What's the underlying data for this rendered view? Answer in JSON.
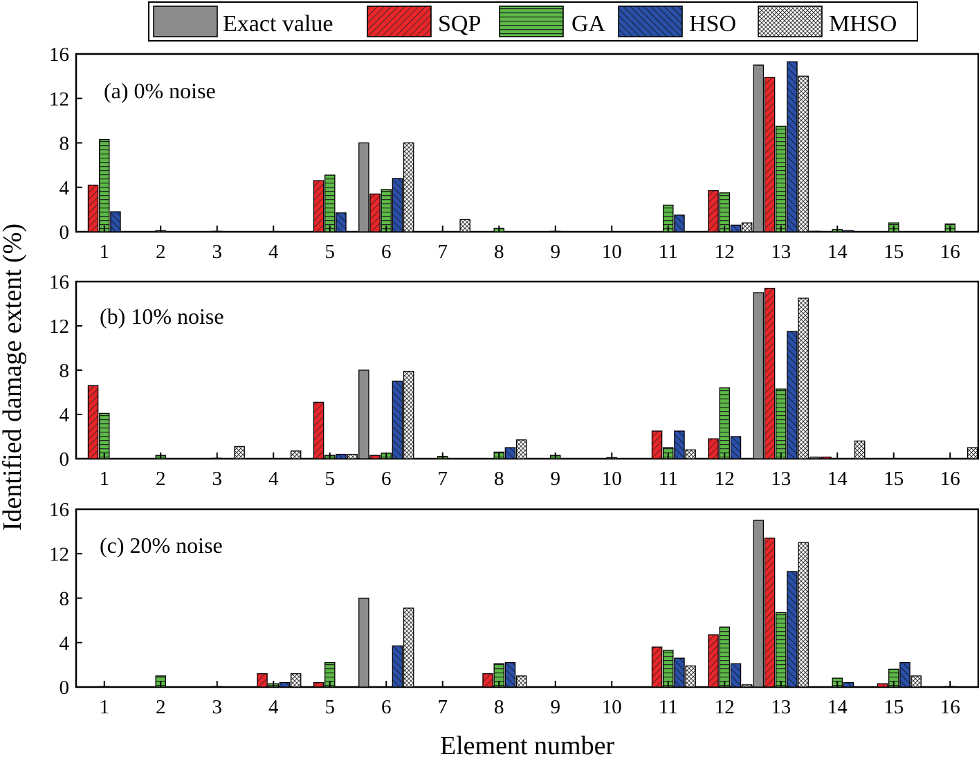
{
  "chart_data": {
    "type": "bar",
    "xlabel": "Element number",
    "ylabel": "Identified damage extent (%)",
    "categories": [
      "1",
      "2",
      "3",
      "4",
      "5",
      "6",
      "7",
      "8",
      "9",
      "10",
      "11",
      "12",
      "13",
      "14",
      "15",
      "16"
    ],
    "ylim": [
      0,
      16
    ],
    "yticks": [
      0,
      4,
      8,
      12,
      16
    ],
    "legend_position": "top-center",
    "grid": false,
    "series_names": [
      "Exact value",
      "SQP",
      "GA",
      "HSO",
      "MHSO"
    ],
    "colors": {
      "Exact value": "#8c8c8c",
      "SQP": "#e8262a",
      "GA": "#5cb946",
      "HSO": "#2a4fa8",
      "MHSO": "#ffffff"
    },
    "panels": [
      {
        "label": "(a) 0% noise",
        "series": [
          {
            "name": "Exact value",
            "values": [
              0,
              0,
              0,
              0,
              0,
              8,
              0,
              0,
              0,
              0,
              0,
              0,
              15,
              0.05,
              0,
              0
            ]
          },
          {
            "name": "SQP",
            "values": [
              4.2,
              0,
              0,
              0,
              4.6,
              3.4,
              0,
              0,
              0,
              0,
              0,
              3.7,
              13.9,
              0,
              0,
              0
            ]
          },
          {
            "name": "GA",
            "values": [
              8.3,
              0.1,
              0.05,
              0,
              5.1,
              3.8,
              0,
              0.3,
              0.05,
              0,
              2.4,
              3.5,
              9.5,
              0.2,
              0.8,
              0.7
            ]
          },
          {
            "name": "HSO",
            "values": [
              1.8,
              0,
              0,
              0,
              1.7,
              4.8,
              0,
              0,
              0,
              0,
              1.5,
              0.6,
              15.3,
              0.1,
              0,
              0
            ]
          },
          {
            "name": "MHSO",
            "values": [
              0,
              0,
              0,
              0,
              0,
              8,
              1.1,
              0,
              0,
              0,
              0,
              0.8,
              14,
              0,
              0,
              0
            ]
          }
        ]
      },
      {
        "label": "(b) 10% noise",
        "series": [
          {
            "name": "Exact value",
            "values": [
              0,
              0,
              0,
              0,
              0,
              8,
              0,
              0,
              0,
              0,
              0,
              0,
              15,
              0.15,
              0,
              0
            ]
          },
          {
            "name": "SQP",
            "values": [
              6.6,
              0,
              0,
              0,
              5.1,
              0.3,
              0,
              0,
              0,
              0,
              2.5,
              1.8,
              15.4,
              0.15,
              0,
              0
            ]
          },
          {
            "name": "GA",
            "values": [
              4.1,
              0.3,
              0.05,
              0,
              0.3,
              0.5,
              0.2,
              0.6,
              0.3,
              0.1,
              1,
              6.4,
              6.3,
              0,
              0,
              0
            ]
          },
          {
            "name": "HSO",
            "values": [
              0,
              0,
              0,
              0,
              0.4,
              7,
              0,
              1,
              0,
              0,
              2.5,
              2,
              11.5,
              0,
              0,
              0
            ]
          },
          {
            "name": "MHSO",
            "values": [
              0,
              0,
              1.1,
              0.7,
              0.4,
              7.9,
              0,
              1.7,
              0,
              0,
              0.8,
              0,
              14.5,
              1.6,
              0,
              1
            ]
          }
        ]
      },
      {
        "label": "(c) 20% noise",
        "series": [
          {
            "name": "Exact value",
            "values": [
              0,
              0,
              0,
              0,
              0,
              8,
              0,
              0,
              0,
              0,
              0,
              0,
              15,
              0,
              0,
              0
            ]
          },
          {
            "name": "SQP",
            "values": [
              0,
              0,
              0,
              1.2,
              0.4,
              0,
              0,
              1.2,
              0,
              0,
              3.6,
              4.7,
              13.4,
              0,
              0.3,
              0
            ]
          },
          {
            "name": "GA",
            "values": [
              0.05,
              1,
              0.05,
              0.3,
              2.2,
              0,
              0,
              2.1,
              0,
              0,
              3.3,
              5.4,
              6.7,
              0.8,
              1.6,
              0.05
            ]
          },
          {
            "name": "HSO",
            "values": [
              0,
              0,
              0,
              0.4,
              0,
              3.7,
              0,
              2.2,
              0,
              0,
              2.6,
              2.1,
              10.4,
              0.4,
              2.2,
              0
            ]
          },
          {
            "name": "MHSO",
            "values": [
              0,
              0,
              0,
              1.2,
              0,
              7.1,
              0,
              1,
              0,
              0,
              1.9,
              0.2,
              13,
              0,
              1,
              0
            ]
          }
        ]
      }
    ]
  }
}
